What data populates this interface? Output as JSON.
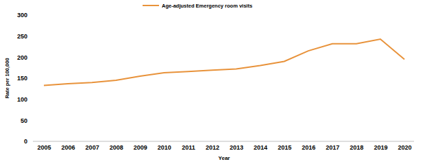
{
  "chart_data": {
    "type": "line",
    "x_label": "Year",
    "y_label": "Rate per 100,000",
    "categories": [
      "2005",
      "2006",
      "2007",
      "2008",
      "2009",
      "2010",
      "2011",
      "2012",
      "2013",
      "2014",
      "2015",
      "2016",
      "2017",
      "2018",
      "2019",
      "2020"
    ],
    "series": [
      {
        "name": "Age-adjusted Emergency room visits",
        "color": "#e8923a",
        "values": [
          133,
          137,
          140,
          145,
          155,
          163,
          166,
          169,
          172,
          180,
          190,
          215,
          232,
          232,
          243,
          195
        ]
      }
    ],
    "ylim": [
      0,
      300
    ],
    "yticks": [
      0,
      50,
      100,
      150,
      200,
      250,
      300
    ],
    "grid": false,
    "legend": "top"
  }
}
